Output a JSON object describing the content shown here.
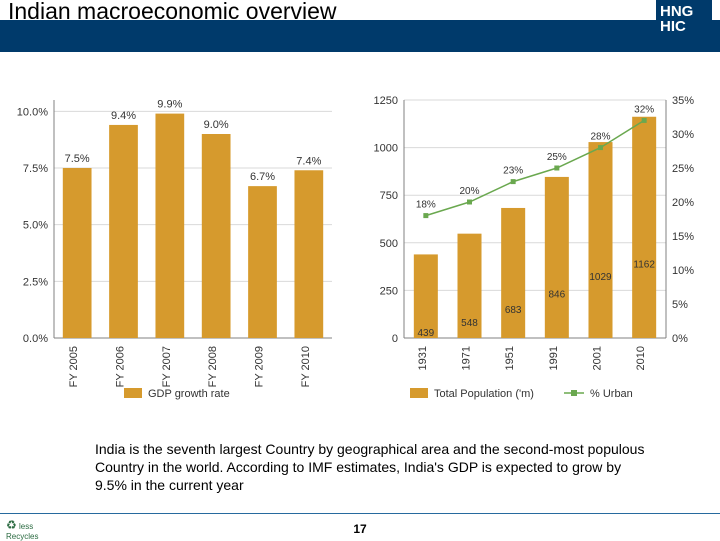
{
  "header": {
    "title": "Indian macroeconomic overview",
    "logo_line1": "HNG",
    "logo_line2": "HIC"
  },
  "caption": "India is the seventh largest Country by geographical area and the second-most populous Country in the world. According to IMF estimates, India's GDP is expected to grow by 9.5% in the current year",
  "page_number": "17",
  "footer_badge": {
    "symbol": "♻",
    "word1": "less",
    "word2": "Recycles"
  },
  "chart_left": {
    "type": "bar",
    "background_color": "#ffffff",
    "axis_color": "#808080",
    "grid_color": "#d9d9d9",
    "text_color": "#333333",
    "font_size_tick": 11,
    "font_size_value": 11,
    "bar_color": "#d69a2d",
    "bar_width": 0.62,
    "categories": [
      "FY 2005",
      "FY 2006",
      "FY 2007",
      "FY 2008",
      "FY 2009",
      "FY 2010"
    ],
    "values_pct": [
      7.5,
      9.4,
      9.9,
      9.0,
      6.7,
      7.4
    ],
    "value_labels": [
      "7.5%",
      "9.4%",
      "9.9%",
      "9.0%",
      "6.7%",
      "7.4%"
    ],
    "y_ticks": [
      0.0,
      2.5,
      5.0,
      7.5,
      10.0
    ],
    "y_tick_labels": [
      "0.0%",
      "2.5%",
      "5.0%",
      "7.5%",
      "10.0%"
    ],
    "ylim": [
      0,
      10.5
    ],
    "legend": [
      {
        "label": "GDP growth rate",
        "swatch": "#d69a2d",
        "shape": "square"
      }
    ]
  },
  "chart_right": {
    "type": "combo-bar-line",
    "background_color": "#ffffff",
    "axis_color": "#808080",
    "grid_color": "#d9d9d9",
    "text_color": "#333333",
    "font_size_tick": 11,
    "font_size_value": 10,
    "bar_color": "#d69a2d",
    "bar_width": 0.55,
    "line_color": "#6aa84f",
    "marker_shape": "square",
    "marker_size": 5,
    "line_width": 1.5,
    "categories": [
      "1931",
      "1971",
      "1951",
      "1991",
      "2001",
      "2010"
    ],
    "bar_values": [
      439,
      548,
      683,
      846,
      1029,
      1162
    ],
    "bar_value_labels": [
      "439",
      "548",
      "683",
      "846",
      "1029",
      "1162"
    ],
    "line_values_pct": [
      18,
      20,
      23,
      25,
      28,
      32
    ],
    "line_value_labels": [
      "18%",
      "20%",
      "23%",
      "25%",
      "28%",
      "32%"
    ],
    "y_left_ticks": [
      0,
      250,
      500,
      750,
      1000,
      1250
    ],
    "y_left_lim": [
      0,
      1250
    ],
    "y_right_ticks_pct": [
      0,
      5,
      10,
      15,
      20,
      25,
      30,
      35
    ],
    "y_right_lim_pct": [
      0,
      35
    ],
    "legend": [
      {
        "label": "Total Population ('m)",
        "swatch": "#d69a2d",
        "shape": "square"
      },
      {
        "label": "% Urban",
        "swatch": "#6aa84f",
        "shape": "square-marker"
      }
    ]
  }
}
